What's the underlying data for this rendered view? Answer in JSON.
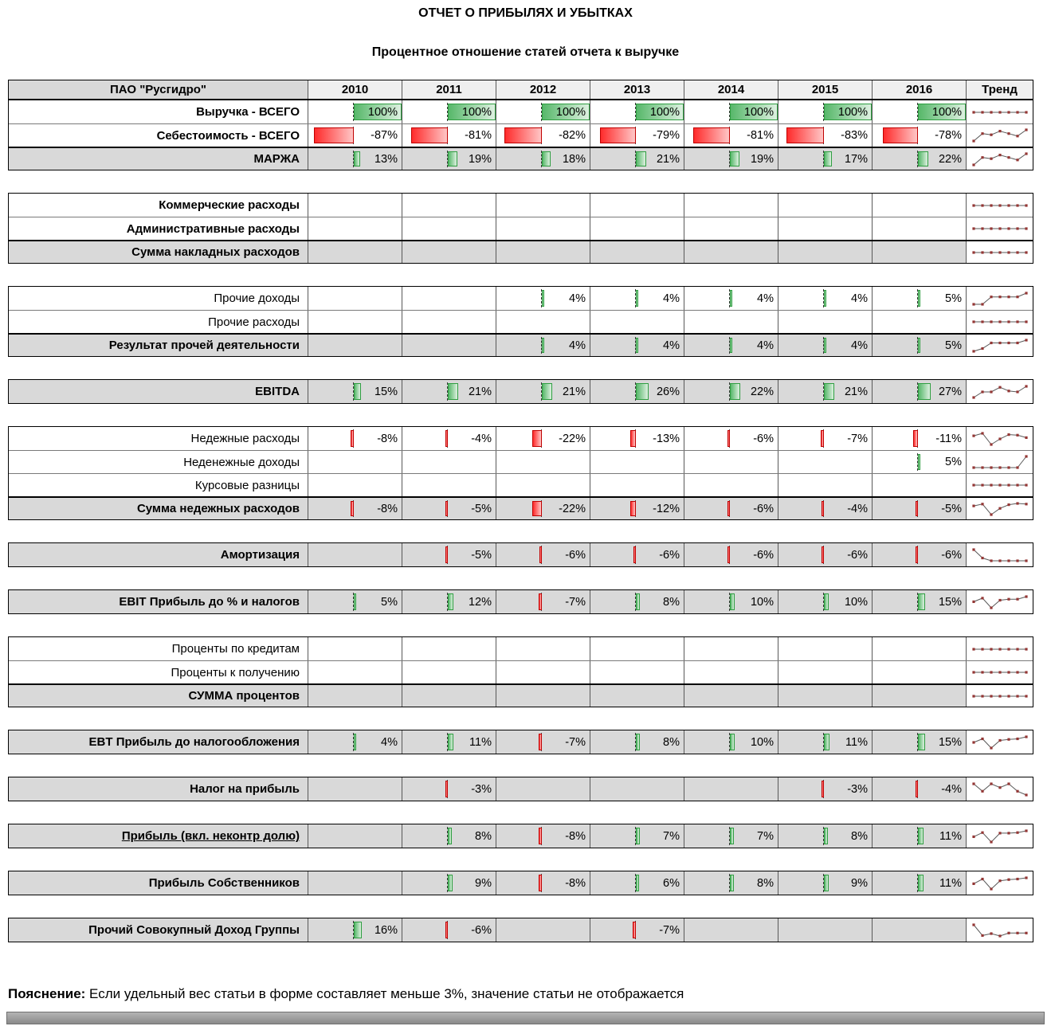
{
  "title": "ОТЧЕТ О ПРИБЫЛЯХ И УБЫТКАХ",
  "subtitle": "Процентное отношение статей отчета к выручке",
  "footnote": {
    "label": "Пояснение:",
    "text": "Если удельный вес статьи в форме составляет меньше 3%, значение статьи не отображается"
  },
  "colors": {
    "positive_bar": "#57b86a",
    "positive_bar_border": "#2f9e41",
    "negative_bar": "#ff2b2b",
    "negative_bar_border": "#c00000",
    "total_row_bg": "#d9d9d9",
    "header_company_bg": "#d9d9d9",
    "header_year_bg": "#efefef",
    "spark_line": "#595959",
    "spark_marker": "#943634"
  },
  "table": {
    "company": "ПАО \"Русгидро\"",
    "years": [
      "2010",
      "2011",
      "2012",
      "2013",
      "2014",
      "2015",
      "2016"
    ],
    "trend_header": "Тренд",
    "sections": [
      {
        "rows": [
          {
            "label": "Выручка - ВСЕГО",
            "bold": true,
            "total": false,
            "values": [
              100,
              100,
              100,
              100,
              100,
              100,
              100
            ],
            "trend": [
              100,
              100,
              100,
              100,
              100,
              100,
              100
            ]
          },
          {
            "label": "Себестоимость - ВСЕГО",
            "bold": true,
            "total": false,
            "values": [
              -87,
              -81,
              -82,
              -79,
              -81,
              -83,
              -78
            ],
            "trend": [
              -87,
              -81,
              -82,
              -79,
              -81,
              -83,
              -78
            ]
          },
          {
            "label": "МАРЖА",
            "bold": true,
            "total": true,
            "values": [
              13,
              19,
              18,
              21,
              19,
              17,
              22
            ],
            "trend": [
              13,
              19,
              18,
              21,
              19,
              17,
              22
            ]
          }
        ]
      },
      {
        "rows": [
          {
            "label": "Коммерческие расходы",
            "bold": true,
            "total": false,
            "values": [
              null,
              null,
              null,
              null,
              null,
              null,
              null
            ],
            "trend": [
              -1,
              -1,
              -1,
              -1,
              -1,
              -1,
              -1
            ]
          },
          {
            "label": "Административные расходы",
            "bold": true,
            "total": false,
            "values": [
              null,
              null,
              null,
              null,
              null,
              null,
              null
            ],
            "trend": [
              -1,
              -1,
              -1,
              -1,
              -1,
              -1,
              -1
            ]
          },
          {
            "label": "Сумма накладных расходов",
            "bold": true,
            "total": true,
            "values": [
              null,
              null,
              null,
              null,
              null,
              null,
              null
            ],
            "trend": [
              -2,
              -2,
              -2,
              -2,
              -2,
              -2,
              -2
            ]
          }
        ]
      },
      {
        "rows": [
          {
            "label": "Прочие доходы",
            "bold": false,
            "total": false,
            "values": [
              null,
              null,
              4,
              4,
              4,
              4,
              5
            ],
            "trend": [
              2,
              2,
              4,
              4,
              4,
              4,
              5
            ]
          },
          {
            "label": "Прочие расходы",
            "bold": false,
            "total": false,
            "values": [
              null,
              null,
              null,
              null,
              null,
              null,
              null
            ],
            "trend": [
              -1,
              -1,
              -1,
              -1,
              -1,
              -1,
              -1
            ]
          },
          {
            "label": "Результат прочей деятельности",
            "bold": true,
            "total": true,
            "values": [
              null,
              null,
              4,
              4,
              4,
              4,
              5
            ],
            "trend": [
              1,
              2,
              4,
              4,
              4,
              4,
              5
            ]
          }
        ]
      },
      {
        "rows": [
          {
            "label": "EBITDA",
            "bold": true,
            "total": true,
            "values": [
              15,
              21,
              21,
              26,
              22,
              21,
              27
            ],
            "trend": [
              15,
              21,
              21,
              26,
              22,
              21,
              27
            ]
          }
        ]
      },
      {
        "rows": [
          {
            "label": "Недежные расходы",
            "bold": false,
            "total": false,
            "values": [
              -8,
              -4,
              -22,
              -13,
              -6,
              -7,
              -11
            ],
            "trend": [
              -8,
              -4,
              -22,
              -13,
              -6,
              -7,
              -11
            ]
          },
          {
            "label": "Неденежные доходы",
            "bold": false,
            "total": false,
            "values": [
              null,
              null,
              null,
              null,
              null,
              null,
              5
            ],
            "trend": [
              1,
              1,
              1,
              1,
              1,
              1,
              5
            ]
          },
          {
            "label": "Курсовые разницы",
            "bold": false,
            "total": false,
            "values": [
              null,
              null,
              null,
              null,
              null,
              null,
              null
            ],
            "trend": [
              0,
              0,
              0,
              0,
              0,
              0,
              0
            ]
          },
          {
            "label": "Сумма недежных расходов",
            "bold": true,
            "total": true,
            "values": [
              -8,
              -5,
              -22,
              -12,
              -6,
              -4,
              -5
            ],
            "trend": [
              -8,
              -5,
              -22,
              -12,
              -6,
              -4,
              -5
            ]
          }
        ]
      },
      {
        "rows": [
          {
            "label": "Амортизация",
            "bold": true,
            "total": true,
            "values": [
              null,
              -5,
              -6,
              -6,
              -6,
              -6,
              -6
            ],
            "trend": [
              -2,
              -5,
              -6,
              -6,
              -6,
              -6,
              -6
            ]
          }
        ]
      },
      {
        "rows": [
          {
            "label": "EBIT Прибыль до % и налогов",
            "bold": true,
            "total": true,
            "values": [
              5,
              12,
              -7,
              8,
              10,
              10,
              15
            ],
            "trend": [
              5,
              12,
              -7,
              8,
              10,
              10,
              15
            ]
          }
        ]
      },
      {
        "rows": [
          {
            "label": "Проценты по кредитам",
            "bold": false,
            "total": false,
            "values": [
              null,
              null,
              null,
              null,
              null,
              null,
              null
            ],
            "trend": [
              -1,
              -1,
              -1,
              -1,
              -1,
              -1,
              -1
            ]
          },
          {
            "label": "Проценты к получению",
            "bold": false,
            "total": false,
            "values": [
              null,
              null,
              null,
              null,
              null,
              null,
              null
            ],
            "trend": [
              0,
              0,
              0,
              0,
              0,
              0,
              0
            ]
          },
          {
            "label": "СУММА процентов",
            "bold": true,
            "total": true,
            "values": [
              null,
              null,
              null,
              null,
              null,
              null,
              null
            ],
            "trend": [
              -1,
              -1,
              -1,
              -1,
              -1,
              -1,
              -1
            ]
          }
        ]
      },
      {
        "rows": [
          {
            "label": "EBT Прибыль до налогообложения",
            "bold": true,
            "total": true,
            "values": [
              4,
              11,
              -7,
              8,
              10,
              11,
              15
            ],
            "trend": [
              4,
              11,
              -7,
              8,
              10,
              11,
              15
            ]
          }
        ]
      },
      {
        "rows": [
          {
            "label": "Налог на прибыль",
            "bold": true,
            "total": true,
            "values": [
              null,
              -3,
              null,
              null,
              null,
              -3,
              -4
            ],
            "trend": [
              -1,
              -3,
              -1,
              -2,
              -1,
              -3,
              -4
            ]
          }
        ]
      },
      {
        "rows": [
          {
            "label": "Прибыль  (вкл. неконтр долю)",
            "bold": true,
            "total": true,
            "underline": true,
            "values": [
              null,
              8,
              -8,
              7,
              7,
              8,
              11
            ],
            "trend": [
              1,
              8,
              -8,
              7,
              7,
              8,
              11
            ]
          }
        ]
      },
      {
        "rows": [
          {
            "label": "Прибыль Собственников",
            "bold": true,
            "total": true,
            "values": [
              null,
              9,
              -8,
              6,
              8,
              9,
              11
            ],
            "trend": [
              1,
              9,
              -8,
              6,
              8,
              9,
              11
            ]
          }
        ]
      },
      {
        "rows": [
          {
            "label": "Прочий Совокупный Доход Группы",
            "bold": true,
            "total": true,
            "values": [
              16,
              -6,
              null,
              -7,
              null,
              null,
              null
            ],
            "trend": [
              16,
              -6,
              -2,
              -7,
              -1,
              -1,
              -1
            ]
          }
        ]
      }
    ]
  }
}
